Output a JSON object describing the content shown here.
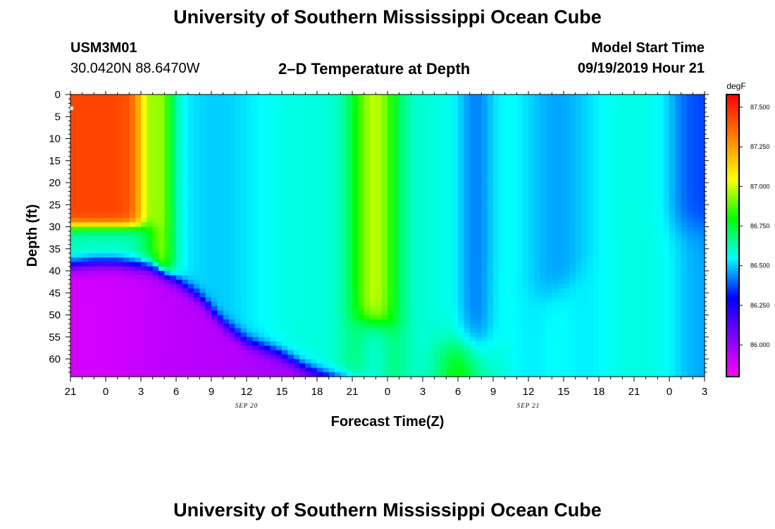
{
  "page": {
    "title_top": "University of Southern Mississippi Ocean Cube",
    "title_bottom": "University of Southern Mississippi Ocean Cube",
    "station_id": "USM3M01",
    "location": "30.0420N 88.6470W",
    "model_label": "Model Start Time",
    "model_time": "09/19/2019 Hour 21"
  },
  "chart_data": {
    "type": "heatmap",
    "title": "2–D Temperature at Depth",
    "xlabel": "Forecast Time(Z)",
    "ylabel": "Depth (ft)",
    "x_ticks_hours": [
      0,
      3,
      6,
      9,
      12,
      15,
      18,
      21,
      24,
      27,
      30,
      33,
      36,
      39,
      42,
      45,
      48,
      51,
      54
    ],
    "x_tick_labels": [
      "21",
      "0",
      "3",
      "6",
      "9",
      "12",
      "15",
      "18",
      "21",
      "0",
      "3",
      "6",
      "9",
      "12",
      "15",
      "18",
      "21",
      "0",
      "3"
    ],
    "x_range_hours": [
      0,
      54
    ],
    "date_labels": [
      {
        "text": "SEP 20",
        "hour": 15
      },
      {
        "text": "SEP 21",
        "hour": 39
      }
    ],
    "y_ticks": [
      0,
      5,
      10,
      15,
      20,
      25,
      30,
      35,
      40,
      45,
      50,
      55,
      60
    ],
    "y_range": [
      0,
      64
    ],
    "colorbar": {
      "unit": "degF",
      "range": [
        85.8,
        87.58
      ],
      "ticks": [
        86.0,
        86.25,
        86.5,
        86.75,
        87.0,
        87.25,
        87.5
      ],
      "tick_labels": [
        "86.000",
        "86.250",
        "86.500",
        "86.750",
        "87.000",
        "87.250",
        "87.500"
      ]
    },
    "features": [
      {
        "name": "warm surface layer",
        "hours": [
          0,
          7
        ],
        "depth": [
          0,
          30
        ],
        "temp": 87.4
      },
      {
        "name": "cold bottom water",
        "hours": [
          0,
          24
        ],
        "depth": [
          38,
          64
        ],
        "temp": 85.9
      },
      {
        "name": "warm column",
        "hours": [
          23,
          30
        ],
        "depth": [
          0,
          52
        ],
        "temp": 86.95
      },
      {
        "name": "cool column",
        "hours": [
          38,
          46
        ],
        "depth": [
          0,
          46
        ],
        "temp": 86.3
      },
      {
        "name": "cold edge",
        "hours": [
          51,
          54
        ],
        "depth": [
          0,
          64
        ],
        "temp": 86.1
      }
    ]
  }
}
